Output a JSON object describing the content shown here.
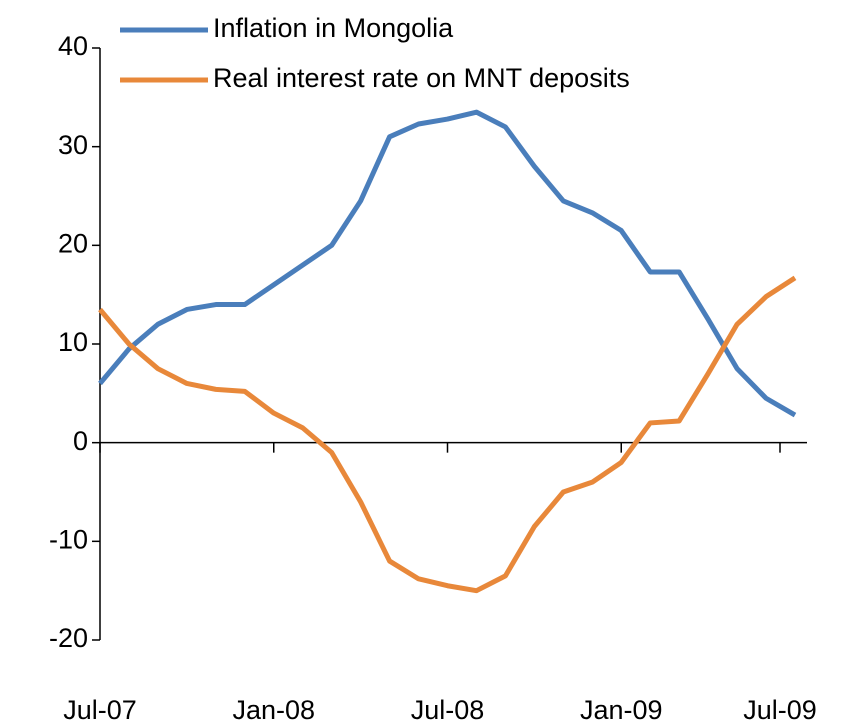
{
  "chart_data": {
    "type": "line",
    "categories": [
      "Jul-07",
      null,
      null,
      null,
      null,
      null,
      "Jan-08",
      null,
      null,
      null,
      null,
      null,
      "Jul-08",
      null,
      null,
      null,
      null,
      null,
      "Jan-09",
      null,
      null,
      null,
      null,
      null,
      "Jul-09"
    ],
    "series": [
      {
        "name": "Inflation in Mongolia",
        "color": "#4a7ebb",
        "values": [
          6,
          9.5,
          12,
          13.5,
          14,
          14,
          16,
          18,
          20,
          24.5,
          31,
          32.3,
          32.8,
          33.5,
          32,
          28,
          24.5,
          23.3,
          21.5,
          17.3,
          17.3,
          12.5,
          7.5,
          4.5,
          2.8
        ]
      },
      {
        "name": "Real interest rate on MNT deposits",
        "color": "#e8883a",
        "values": [
          13.5,
          10,
          7.5,
          6,
          5.4,
          5.2,
          3,
          1.5,
          -1,
          -6,
          -12,
          -13.8,
          -14.5,
          -15,
          -13.5,
          -8.5,
          -5,
          -4,
          -2,
          2,
          2.2,
          7,
          12,
          14.8,
          16.7
        ]
      }
    ],
    "ylim": [
      -20,
      40
    ],
    "yticks": [
      -20,
      -10,
      0,
      10,
      20,
      30,
      40
    ],
    "legend": "top"
  }
}
